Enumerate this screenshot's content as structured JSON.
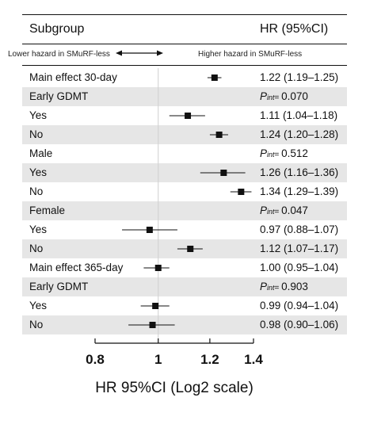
{
  "header": {
    "subgroup": "Subgroup",
    "hr": "HR (95%CI)"
  },
  "direction": {
    "lower": "Lower hazard in SMuRF-less",
    "higher": "Higher hazard in SMuRF-less"
  },
  "chart_data": {
    "type": "forest",
    "xlabel": "HR 95%CI (Log2 scale)",
    "x_scale": "log2",
    "xlim": [
      0.8,
      1.4
    ],
    "ticks": [
      0.8,
      1,
      1.2,
      1.4
    ],
    "tick_labels": [
      "0.8",
      "1",
      "1.2",
      "1.4"
    ],
    "reference_line": 1,
    "rows": [
      {
        "label": "Main effect 30-day",
        "hr": 1.22,
        "lo": 1.19,
        "hi": 1.25,
        "text": "1.22 (1.19–1.25)"
      },
      {
        "label": "Early GDMT",
        "pint": "0.070"
      },
      {
        "label": "Yes",
        "hr": 1.11,
        "lo": 1.04,
        "hi": 1.18,
        "text": "1.11 (1.04–1.18)"
      },
      {
        "label": "No",
        "hr": 1.24,
        "lo": 1.2,
        "hi": 1.28,
        "text": "1.24 (1.20–1.28)"
      },
      {
        "label": "Male",
        "pint": "0.512"
      },
      {
        "label": "Yes",
        "hr": 1.26,
        "lo": 1.16,
        "hi": 1.36,
        "text": "1.26 (1.16–1.36)"
      },
      {
        "label": "No",
        "hr": 1.34,
        "lo": 1.29,
        "hi": 1.39,
        "text": "1.34 (1.29–1.39)"
      },
      {
        "label": "Female",
        "pint": "0.047"
      },
      {
        "label": "Yes",
        "hr": 0.97,
        "lo": 0.88,
        "hi": 1.07,
        "text": "0.97 (0.88–1.07)"
      },
      {
        "label": "No",
        "hr": 1.12,
        "lo": 1.07,
        "hi": 1.17,
        "text": "1.12 (1.07–1.17)"
      },
      {
        "label": "Main effect 365-day",
        "hr": 1.0,
        "lo": 0.95,
        "hi": 1.04,
        "text": "1.00 (0.95–1.04)"
      },
      {
        "label": "Early GDMT",
        "pint": "0.903"
      },
      {
        "label": "Yes",
        "hr": 0.99,
        "lo": 0.94,
        "hi": 1.04,
        "text": "0.99 (0.94–1.04)"
      },
      {
        "label": "No",
        "hr": 0.98,
        "lo": 0.9,
        "hi": 1.06,
        "text": "0.98 (0.90–1.06)"
      }
    ]
  },
  "pint_label": {
    "p": "P",
    "sub": "int",
    "eq": "= "
  }
}
